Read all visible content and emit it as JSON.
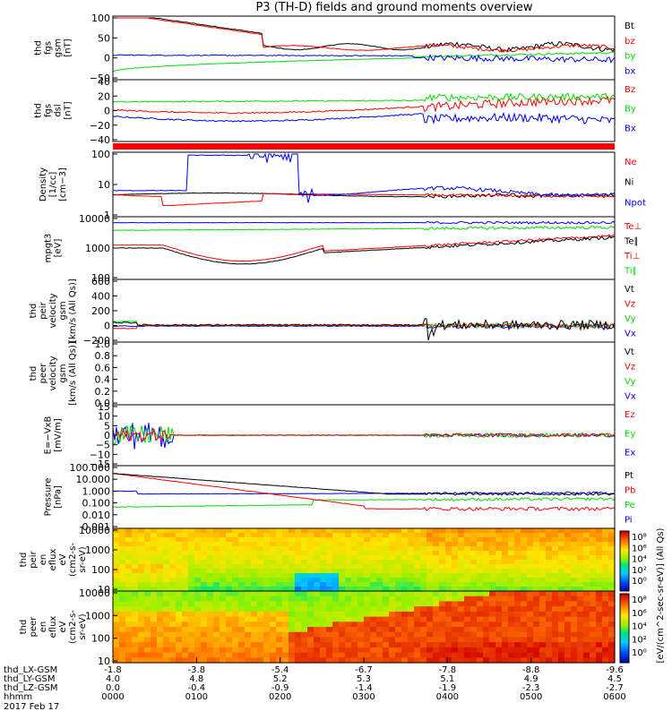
{
  "title": "P3 (TH-D) fields and ground moments overview",
  "date_label": "2017 Feb 17",
  "colors": {
    "black": "#000000",
    "red": "#ff0000",
    "green": "#00dd00",
    "blue": "#0000ff"
  },
  "ephemeris": {
    "rows": [
      {
        "label": "thd_LX-GSM",
        "values": [
          "-1.8",
          "-3.8",
          "-5.4",
          "-6.7",
          "-7.8",
          "-8.8",
          "-9.6"
        ]
      },
      {
        "label": "thd_LY-GSM",
        "values": [
          "4.0",
          "4.8",
          "5.2",
          "5.3",
          "5.1",
          "4.9",
          "4.5"
        ]
      },
      {
        "label": "thd_LZ-GSM",
        "values": [
          "0.0",
          "-0.4",
          "-0.9",
          "-1.4",
          "-1.9",
          "-2.3",
          "-2.7"
        ]
      },
      {
        "label": "hhmm",
        "values": [
          "0000",
          "0100",
          "0200",
          "0300",
          "0400",
          "0500",
          "0600"
        ]
      }
    ]
  },
  "chart_data": [
    {
      "type": "line",
      "id": "fgs_gsm",
      "ylabel": [
        "thd",
        "fgs",
        "gsm",
        "[nT]"
      ],
      "ylim": [
        -60,
        100
      ],
      "ticks": [
        "100",
        "50",
        "0",
        "−50"
      ],
      "series": [
        {
          "name": "Bt",
          "color": "#000000"
        },
        {
          "name": "bz",
          "color": "#ff0000"
        },
        {
          "name": "by",
          "color": "#00dd00"
        },
        {
          "name": "bx",
          "color": "#0000ff"
        }
      ]
    },
    {
      "type": "line",
      "id": "fgs_dsl",
      "ylabel": [
        "thd",
        "fgs",
        "dsl",
        "[nT]"
      ],
      "ylim": [
        -55,
        40
      ],
      "ticks": [
        "40",
        "20",
        "0",
        "−20",
        "−40"
      ],
      "series": [
        {
          "name": "Bz",
          "color": "#ff0000"
        },
        {
          "name": "By",
          "color": "#00dd00"
        },
        {
          "name": "Bx",
          "color": "#0000ff"
        }
      ]
    },
    {
      "type": "line",
      "id": "density",
      "ylabel": [
        "Density",
        "[1/cc]",
        "[cm−3]"
      ],
      "ylim": [
        0.2,
        200
      ],
      "log": true,
      "ticks": [
        "100",
        "10",
        "1"
      ],
      "series": [
        {
          "name": "Ne",
          "color": "#ff0000"
        },
        {
          "name": "Ni",
          "color": "#000000"
        },
        {
          "name": "Npot",
          "color": "#0000ff"
        }
      ]
    },
    {
      "type": "line",
      "id": "temperature",
      "ylabel": [
        "mpgt3",
        "[eV]"
      ],
      "ylim": [
        20,
        15000
      ],
      "log": true,
      "ticks": [
        "10000",
        "1000",
        "100"
      ],
      "series": [
        {
          "name": "Te⊥",
          "color": "#ff0000"
        },
        {
          "name": "Te∥",
          "color": "#000000"
        },
        {
          "name": "Ti⊥",
          "color": "#ff0000"
        },
        {
          "name": "Ti∥",
          "color": "#00dd00"
        }
      ]
    },
    {
      "type": "line",
      "id": "peir_velocity",
      "ylabel": [
        "thd",
        "peir",
        "velocity",
        "gsm",
        "[km/s (All Qs)]"
      ],
      "ylim": [
        -200,
        600
      ],
      "ticks": [
        "600",
        "400",
        "200",
        "0",
        "−200"
      ],
      "series": [
        {
          "name": "Vt",
          "color": "#000000"
        },
        {
          "name": "Vz",
          "color": "#ff0000"
        },
        {
          "name": "Vy",
          "color": "#00dd00"
        },
        {
          "name": "Vx",
          "color": "#0000ff"
        }
      ]
    },
    {
      "type": "line",
      "id": "peer_velocity",
      "ylabel": [
        "thd",
        "peer",
        "velocity",
        "gsm",
        "[km/s (All Qs)]"
      ],
      "ylim": [
        0,
        1
      ],
      "ticks": [
        "1.0",
        "0.8",
        "0.6",
        "0.4",
        "0.2",
        "0.0"
      ],
      "series": [
        {
          "name": "Vt",
          "color": "#000000"
        },
        {
          "name": "Vz",
          "color": "#ff0000"
        },
        {
          "name": "Vy",
          "color": "#00dd00"
        },
        {
          "name": "Vx",
          "color": "#0000ff"
        }
      ]
    },
    {
      "type": "line",
      "id": "efield",
      "ylabel": [
        "E=−VxB",
        "[mV/m]"
      ],
      "ylim": [
        -15,
        15
      ],
      "ticks": [
        "15",
        "10",
        "5",
        "0",
        "−5",
        "−10",
        "−15"
      ],
      "series": [
        {
          "name": "Ez",
          "color": "#ff0000"
        },
        {
          "name": "Ey",
          "color": "#00dd00"
        },
        {
          "name": "Ex",
          "color": "#0000ff"
        }
      ]
    },
    {
      "type": "line",
      "id": "pressure",
      "ylabel": [
        "Pressure",
        "[nPa]"
      ],
      "ylim": [
        0.001,
        100
      ],
      "log": true,
      "ticks": [
        "100.000",
        "10.000",
        "1.000",
        "0.100",
        "0.010",
        "0.001"
      ],
      "series": [
        {
          "name": "Pt",
          "color": "#000000"
        },
        {
          "name": "Pb",
          "color": "#ff0000"
        },
        {
          "name": "Pe",
          "color": "#00dd00"
        },
        {
          "name": "Pi",
          "color": "#0000ff"
        }
      ]
    },
    {
      "type": "heatmap",
      "id": "peir_eflux",
      "ylabel": [
        "thd",
        "peir",
        "en",
        "eflux",
        "eV",
        "(cm2-s-",
        "sr-eV)"
      ],
      "ticks": [
        "10000",
        "1000",
        "100",
        "10"
      ]
    },
    {
      "type": "heatmap",
      "id": "peer_eflux",
      "ylabel": [
        "thd",
        "peer",
        "en",
        "eflux",
        "eV",
        "(cm2-s-",
        "sr-eV)"
      ],
      "ticks": [
        "10000",
        "1000",
        "100",
        "10"
      ]
    }
  ],
  "colorbar": {
    "label": "[eV/(cm^2-sec-sr-eV)] (All Qs)",
    "top_ticks": [
      "10⁸",
      "10⁶",
      "10⁴",
      "10²",
      "10⁰"
    ],
    "bottom_ticks": [
      "10⁸",
      "10⁶",
      "10⁴",
      "10²",
      "10⁰"
    ]
  }
}
